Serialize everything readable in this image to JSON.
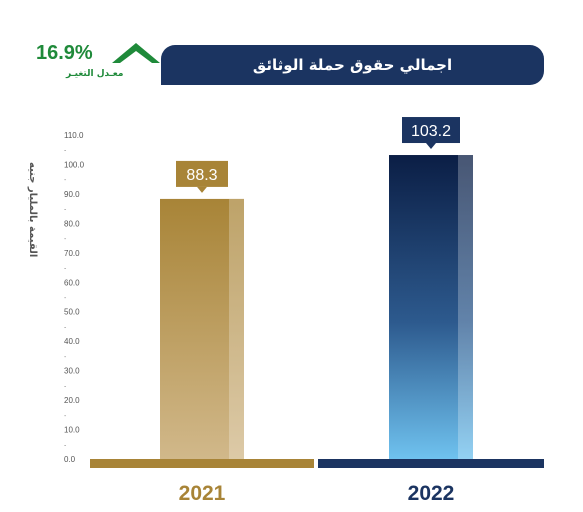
{
  "header": {
    "title": "اجمالي حقوق حملة الوثائق"
  },
  "change": {
    "value": "16.9%",
    "label": "معـدل التغيـر",
    "direction": "up",
    "color": "#1f8a3a"
  },
  "colors": {
    "banner": "#1b3461",
    "gold_dark": "#a88437",
    "gold_light": "#d1b88a",
    "navy_dark": "#0b1e45",
    "blue_light": "#6fc2ef",
    "label_navy": "#1b3461"
  },
  "chart_data": {
    "type": "bar",
    "categories": [
      "2021",
      "2022"
    ],
    "values": [
      88.3,
      103.2
    ],
    "value_labels": [
      "88.3",
      "103.2"
    ],
    "ylabel": "القيمة بالمليار جنيه",
    "ylim": [
      0,
      110
    ],
    "yticks": [
      "0.0",
      "10.0",
      "20.0",
      "30.0",
      "40.0",
      "50.0",
      "60.0",
      "70.0",
      "80.0",
      "90.0",
      "100.0",
      "110.0"
    ],
    "grid": false,
    "bar_colors": [
      "gold",
      "navy"
    ]
  }
}
